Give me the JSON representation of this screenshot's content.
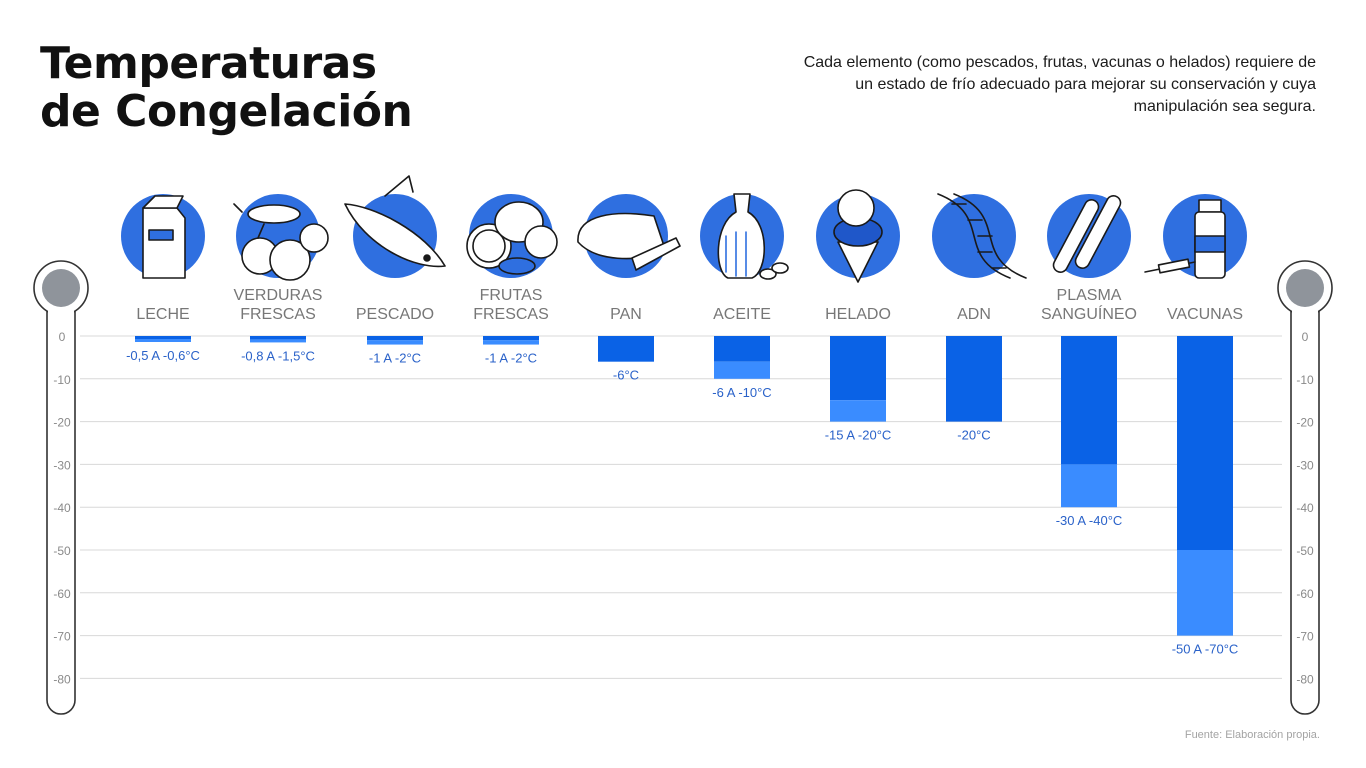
{
  "title": {
    "line1": "Temperaturas",
    "line2": "de Congelación"
  },
  "subtitle": "Cada elemento (como pescados, frutas, vacunas o helados) requiere de un estado de frío adecuado para mejorar su conservación y cuya manipulación sea segura.",
  "source": "Fuente: Elaboración propia.",
  "colors": {
    "bar_main": "#0a62e6",
    "bar_range": "#3a8cff",
    "icon_circle": "#2f6fe0",
    "grid": "#d8d8d8",
    "thermo_bulb": "#8f949b"
  },
  "icons": [
    "milk-carton-icon",
    "vegetables-icon",
    "fish-icon",
    "citrus-fruits-icon",
    "bread-icon",
    "olive-oil-jug-icon",
    "ice-cream-cone-icon",
    "dna-icon",
    "blood-tubes-icon",
    "vaccine-vial-icon"
  ],
  "chart_data": {
    "type": "bar",
    "categories": [
      [
        "LECHE"
      ],
      [
        "VERDURAS",
        "FRESCAS"
      ],
      [
        "PESCADO"
      ],
      [
        "FRUTAS",
        "FRESCAS"
      ],
      [
        "PAN"
      ],
      [
        "ACEITE"
      ],
      [
        "HELADO"
      ],
      [
        "ADN"
      ],
      [
        "PLASMA",
        "SANGUÍNEO"
      ],
      [
        "VACUNAS"
      ]
    ],
    "ranges": [
      [
        -0.5,
        -0.6
      ],
      [
        -0.8,
        -1.5
      ],
      [
        -1,
        -2
      ],
      [
        -1,
        -2
      ],
      [
        -6,
        -6
      ],
      [
        -6,
        -10
      ],
      [
        -15,
        -20
      ],
      [
        -20,
        -20
      ],
      [
        -30,
        -40
      ],
      [
        -50,
        -70
      ]
    ],
    "labels": [
      "-0,5 A -0,6°C",
      "-0,8 A -1,5°C",
      "-1 A -2°C",
      "-1 A -2°C",
      "-6°C",
      "-6 A -10°C",
      "-15 A -20°C",
      "-20°C",
      "-30 A -40°C",
      "-50 A -70°C"
    ],
    "yticks": [
      0,
      -10,
      -20,
      -30,
      -40,
      -50,
      -60,
      -70,
      -80
    ],
    "ylim": [
      0,
      -80
    ],
    "grid": true
  }
}
